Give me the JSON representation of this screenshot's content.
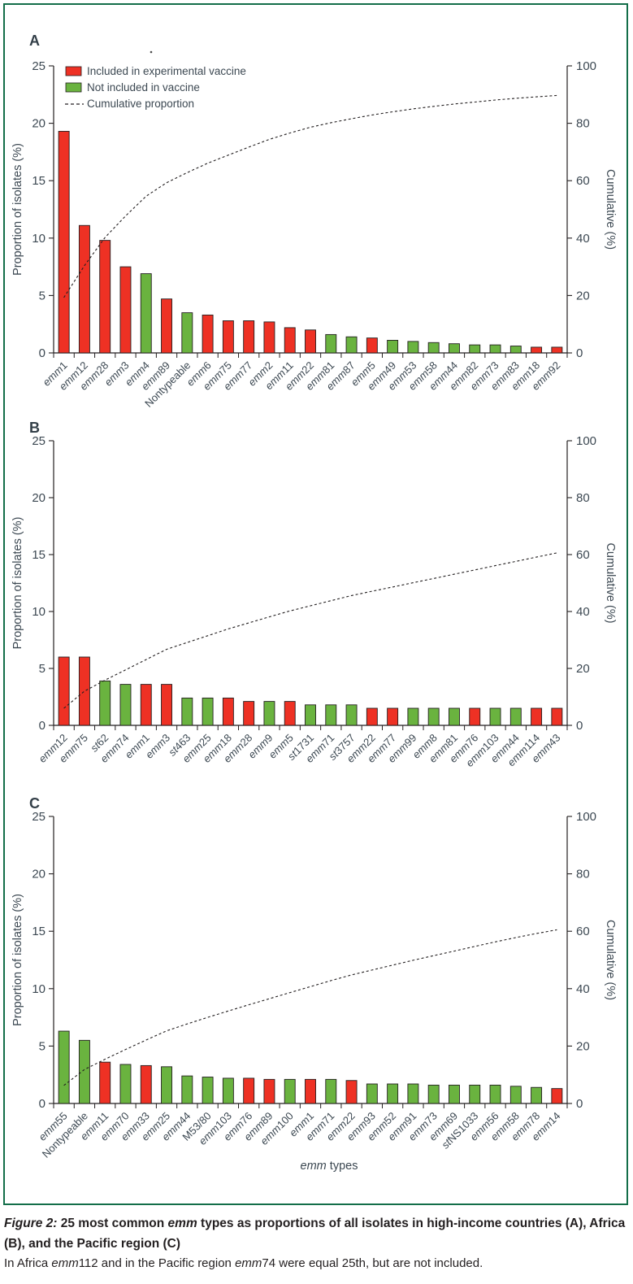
{
  "figure": {
    "id_label": "Figure 2",
    "y_axis_label": "Proportion of isolates (%)",
    "y2_axis_label": "Cumulative (%)",
    "x_axis_label": "emm types"
  },
  "chart_data": [
    {
      "type": "bar",
      "overlay": "cumulative-line",
      "panel_label": "A",
      "region": "High-income countries",
      "title": "",
      "xlabel": "",
      "ylabel": "Proportion of isolates (%)",
      "y2label": "Cumulative (%)",
      "ylim": [
        0,
        25
      ],
      "y2lim": [
        0,
        100
      ],
      "yticks": [
        0,
        5,
        10,
        15,
        20,
        25
      ],
      "y2ticks": [
        0,
        20,
        40,
        60,
        80,
        100
      ],
      "grid": false,
      "legend_position": "top-left-inside",
      "legend": [
        {
          "swatch": "red-fill",
          "label": "Included in experimental vaccine"
        },
        {
          "swatch": "green-fill",
          "label": "Not included in vaccine"
        },
        {
          "swatch": "dashed-line",
          "label": "Cumulative proportion"
        }
      ],
      "categories": [
        "emm1",
        "emm12",
        "emm28",
        "emm3",
        "emm4",
        "emm89",
        "Nontypeable",
        "emm6",
        "emm75",
        "emm77",
        "emm2",
        "emm11",
        "emm22",
        "emm81",
        "emm87",
        "emm5",
        "emm49",
        "emm53",
        "emm58",
        "emm44",
        "emm82",
        "emm73",
        "emm83",
        "emm18",
        "emm92"
      ],
      "values": [
        19.3,
        11.1,
        9.8,
        7.5,
        6.9,
        4.7,
        3.5,
        3.3,
        2.8,
        2.8,
        2.7,
        2.2,
        2.0,
        1.6,
        1.4,
        1.3,
        1.1,
        1.0,
        0.9,
        0.8,
        0.7,
        0.7,
        0.6,
        0.5,
        0.5
      ],
      "included_in_experimental_vaccine": [
        true,
        true,
        true,
        true,
        false,
        true,
        false,
        true,
        true,
        true,
        true,
        true,
        true,
        false,
        false,
        true,
        false,
        false,
        false,
        false,
        false,
        false,
        false,
        true,
        true
      ],
      "cumulative_percent": [
        19.3,
        30.4,
        40.2,
        47.7,
        54.6,
        59.3,
        62.8,
        66.1,
        68.9,
        71.7,
        74.4,
        76.6,
        78.6,
        80.2,
        81.6,
        82.9,
        84.0,
        85.0,
        85.9,
        86.7,
        87.4,
        88.1,
        88.7,
        89.2,
        89.7
      ]
    },
    {
      "type": "bar",
      "overlay": "cumulative-line",
      "panel_label": "B",
      "region": "Africa",
      "title": "",
      "xlabel": "",
      "ylabel": "Proportion of isolates (%)",
      "y2label": "Cumulative (%)",
      "ylim": [
        0,
        25
      ],
      "y2lim": [
        0,
        100
      ],
      "yticks": [
        0,
        5,
        10,
        15,
        20,
        25
      ],
      "y2ticks": [
        0,
        20,
        40,
        60,
        80,
        100
      ],
      "grid": false,
      "categories": [
        "emm12",
        "emm75",
        "st62",
        "emm74",
        "emm1",
        "emm3",
        "st463",
        "emm25",
        "emm18",
        "emm28",
        "emm9",
        "emm5",
        "st1731",
        "emm71",
        "st3757",
        "emm22",
        "emm77",
        "emm99",
        "emm8",
        "emm81",
        "emm76",
        "emm103",
        "emm44",
        "emm114",
        "emm43"
      ],
      "values": [
        6.0,
        6.0,
        3.9,
        3.6,
        3.6,
        3.6,
        2.4,
        2.4,
        2.4,
        2.1,
        2.1,
        2.1,
        1.8,
        1.8,
        1.8,
        1.5,
        1.5,
        1.5,
        1.5,
        1.5,
        1.5,
        1.5,
        1.5,
        1.5,
        1.5
      ],
      "included_in_experimental_vaccine": [
        true,
        true,
        false,
        false,
        true,
        true,
        false,
        false,
        true,
        true,
        false,
        true,
        false,
        false,
        false,
        true,
        true,
        false,
        false,
        false,
        true,
        false,
        false,
        true,
        true
      ],
      "cumulative_percent": [
        6.0,
        12.0,
        15.9,
        19.5,
        23.1,
        26.7,
        29.1,
        31.5,
        33.9,
        36.0,
        38.1,
        40.2,
        42.0,
        43.8,
        45.6,
        47.1,
        48.6,
        50.1,
        51.6,
        53.1,
        54.6,
        56.1,
        57.6,
        59.1,
        60.6
      ]
    },
    {
      "type": "bar",
      "overlay": "cumulative-line",
      "panel_label": "C",
      "region": "Pacific region",
      "title": "",
      "xlabel": "emm types",
      "ylabel": "Proportion of isolates (%)",
      "y2label": "Cumulative (%)",
      "ylim": [
        0,
        25
      ],
      "y2lim": [
        0,
        100
      ],
      "yticks": [
        0,
        5,
        10,
        15,
        20,
        25
      ],
      "y2ticks": [
        0,
        20,
        40,
        60,
        80,
        100
      ],
      "grid": false,
      "categories": [
        "emm55",
        "Nontypeable",
        "emm11",
        "emm70",
        "emm33",
        "emm25",
        "emm44",
        "M53/80",
        "emm103",
        "emm76",
        "emm89",
        "emm100",
        "emm1",
        "emm71",
        "emm22",
        "emm93",
        "emm52",
        "emm91",
        "emm73",
        "emm69",
        "stNS1033",
        "emm56",
        "emm58",
        "emm78",
        "emm14"
      ],
      "values": [
        6.3,
        5.5,
        3.6,
        3.4,
        3.3,
        3.2,
        2.4,
        2.3,
        2.2,
        2.2,
        2.1,
        2.1,
        2.1,
        2.1,
        2.0,
        1.7,
        1.7,
        1.7,
        1.6,
        1.6,
        1.6,
        1.6,
        1.5,
        1.4,
        1.3
      ],
      "included_in_experimental_vaccine": [
        false,
        false,
        true,
        false,
        true,
        false,
        false,
        false,
        false,
        true,
        true,
        false,
        true,
        false,
        true,
        false,
        false,
        false,
        false,
        false,
        false,
        false,
        false,
        false,
        true
      ],
      "cumulative_percent": [
        6.3,
        11.8,
        15.4,
        18.8,
        22.1,
        25.3,
        27.7,
        30.0,
        32.2,
        34.4,
        36.5,
        38.6,
        40.7,
        42.8,
        44.8,
        46.5,
        48.2,
        49.9,
        51.5,
        53.1,
        54.7,
        56.3,
        57.8,
        59.2,
        60.5
      ]
    }
  ],
  "caption": {
    "title_segments": [
      {
        "text": "Figure 2:",
        "bold": true,
        "italic": true
      },
      {
        "text": " 25 most common ",
        "bold": true
      },
      {
        "text": "emm",
        "bold": true,
        "italic": true
      },
      {
        "text": " types as proportions of all isolates in high-income countries (A), Africa (B), and the Pacific region (C)",
        "bold": true
      }
    ],
    "note_segments": [
      {
        "text": "In Africa "
      },
      {
        "text": "emm",
        "italic": true
      },
      {
        "text": "112 and in the Pacific region "
      },
      {
        "text": "emm",
        "italic": true
      },
      {
        "text": "74 were equal 25th, but are not included."
      }
    ]
  },
  "colors": {
    "frame": "#136e49",
    "vaccine_included": "#ee3124",
    "not_included": "#6ab33f",
    "axis_line": "#231f20",
    "axis_text": "#3c4852",
    "panel_letter": "#333f48",
    "caption_text": "#231f20"
  }
}
